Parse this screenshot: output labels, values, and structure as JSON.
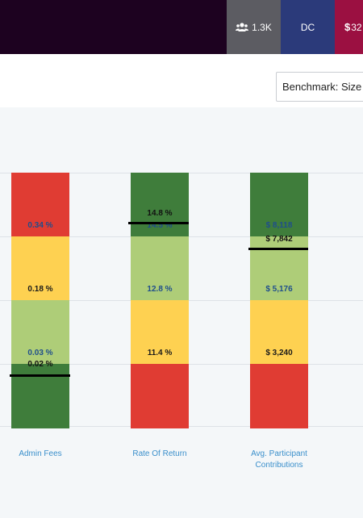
{
  "header": {
    "participants": "1.3K",
    "plan_type": "DC",
    "assets": "32",
    "colors": {
      "bg": "#1d0220",
      "users": "#5c5c62",
      "dc": "#2b3a7a",
      "money": "#9b1041"
    }
  },
  "benchmark": {
    "label": "Benchmark: Size"
  },
  "chart_data": {
    "type": "bar",
    "categories": [
      "Admin Fees",
      "Rate Of Return",
      "Avg. Participant Contributions"
    ],
    "colors": {
      "dark_green": "#3f7d3b",
      "light_green": "#aecd78",
      "yellow": "#fed151",
      "red": "#e03c33"
    },
    "series": [
      {
        "segments": [
          {
            "color": "red",
            "label": "0.34 %"
          },
          {
            "color": "yellow",
            "label": "0.18 %"
          },
          {
            "color": "light_green",
            "label": "0.03 %"
          },
          {
            "color": "dark_green",
            "label": ""
          }
        ],
        "marker": {
          "label": "0.02 %",
          "value": 0.02
        }
      },
      {
        "segments": [
          {
            "color": "dark_green",
            "label": "14.5 %"
          },
          {
            "color": "light_green",
            "label": "12.8 %"
          },
          {
            "color": "yellow",
            "label": "11.4 %"
          },
          {
            "color": "red",
            "label": ""
          }
        ],
        "marker": {
          "label": "14.8 %",
          "value": 14.8
        }
      },
      {
        "segments": [
          {
            "color": "dark_green",
            "label": "$ 8,118"
          },
          {
            "color": "light_green",
            "label": "$ 5,176"
          },
          {
            "color": "yellow",
            "label": "$ 3,240"
          },
          {
            "color": "red",
            "label": ""
          }
        ],
        "marker": {
          "label": "$ 7,842",
          "value": 7842
        }
      }
    ]
  }
}
